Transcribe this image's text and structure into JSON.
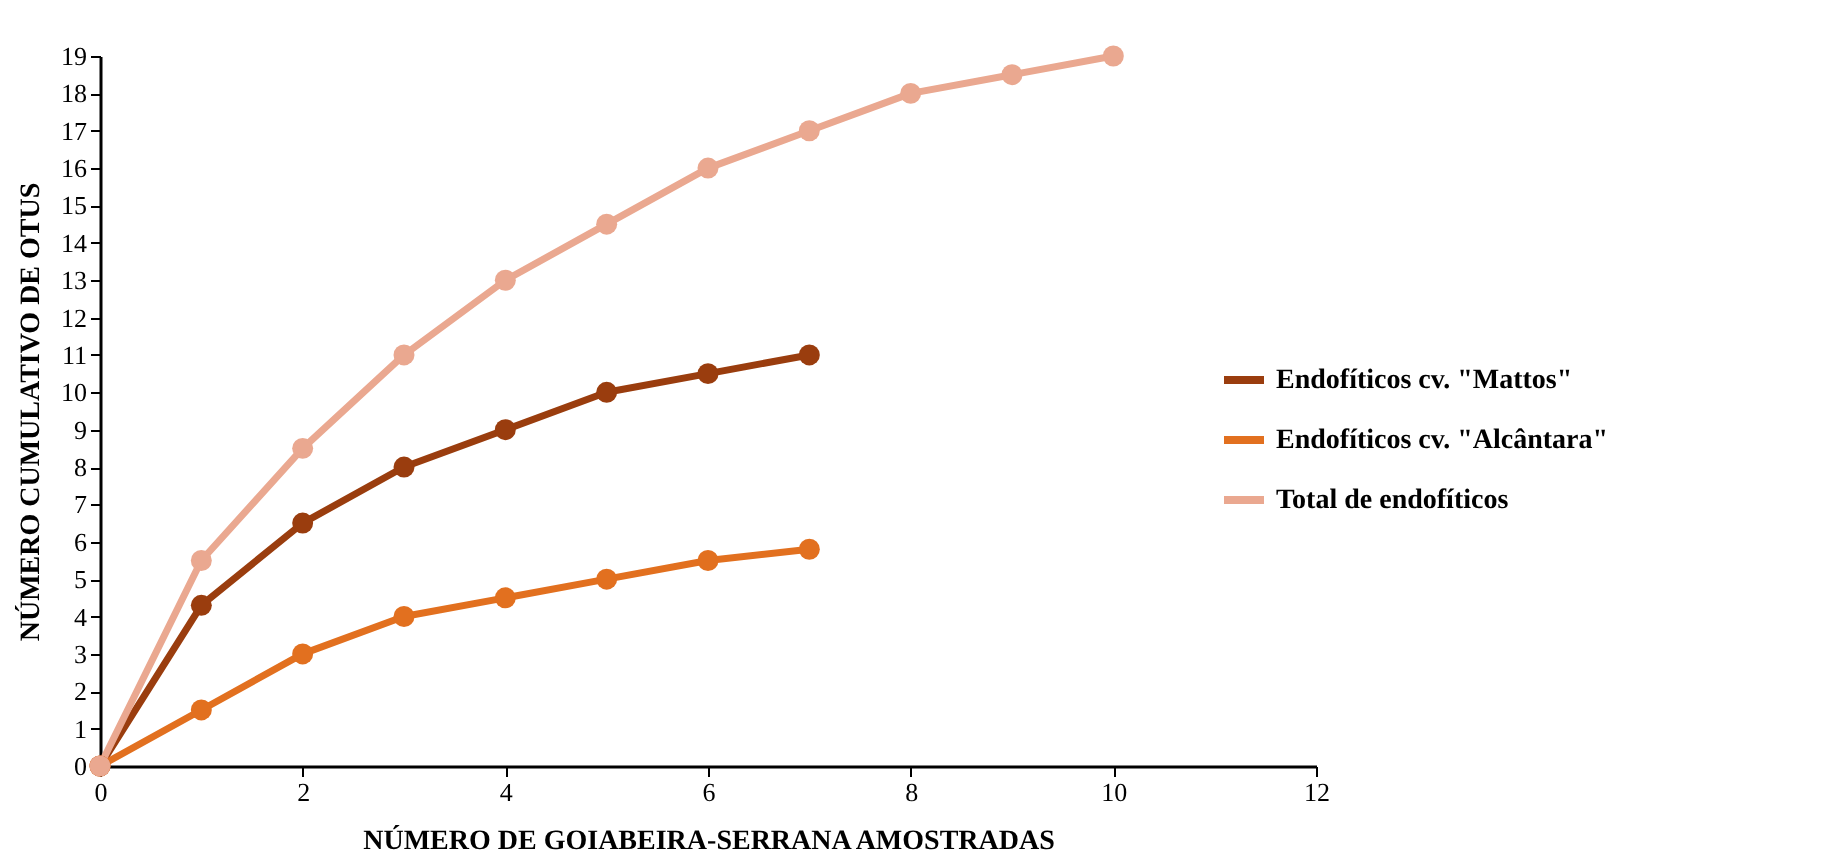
{
  "chart_data": {
    "type": "line",
    "xlabel": "NÚMERO DE GOIABEIRA-SERRANA AMOSTRADAS",
    "ylabel": "NÚMERO CUMULATIVO DE OTUS",
    "xlim": [
      0,
      12
    ],
    "xticks": [
      0,
      2,
      4,
      6,
      8,
      10,
      12
    ],
    "ylim": [
      0,
      19
    ],
    "yticks": [
      0,
      1,
      2,
      3,
      4,
      5,
      6,
      7,
      8,
      9,
      10,
      11,
      12,
      13,
      14,
      15,
      16,
      17,
      18,
      19
    ],
    "grid": false,
    "legend": "right",
    "marker": "circle",
    "line_style": "solid",
    "series": [
      {
        "name": "Endofíticos cv. \"Mattos\"",
        "color": "#9a3d0e",
        "x": [
          0,
          1,
          2,
          3,
          4,
          5,
          6,
          7
        ],
        "values": [
          0,
          4.3,
          6.5,
          8,
          9,
          10,
          10.5,
          11
        ]
      },
      {
        "name": "Endofíticos cv. \"Alcântara\"",
        "color": "#e2701f",
        "x": [
          0,
          1,
          2,
          3,
          4,
          5,
          6,
          7
        ],
        "values": [
          0,
          1.5,
          3,
          4,
          4.5,
          5,
          5.5,
          5.8
        ]
      },
      {
        "name": "Total de endofíticos",
        "color": "#eaa890",
        "x": [
          0,
          1,
          2,
          3,
          4,
          5,
          6,
          7,
          8,
          9,
          10
        ],
        "values": [
          0,
          5.5,
          8.5,
          11,
          13,
          14.5,
          16,
          17,
          18,
          18.5,
          19
        ]
      }
    ]
  }
}
